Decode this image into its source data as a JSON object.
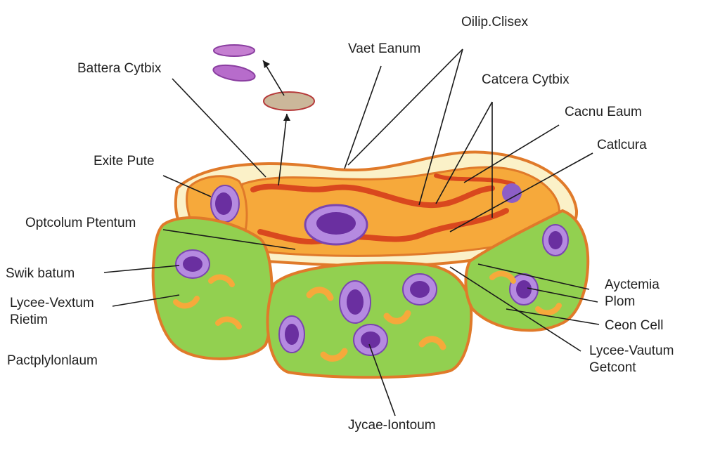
{
  "diagram": {
    "colors": {
      "outline": "#e07a2a",
      "orange_fill": "#f6a93b",
      "cream": "#fbf1c8",
      "green_fill": "#92d050",
      "nucleus": "#9b6fd1",
      "nucleus_dark": "#6a2fa0",
      "mito_red": "#d9481e",
      "leader": "#1a1a1a"
    },
    "labels": {
      "top_center_a": "Oilip.Clisex",
      "top_center_b": "Vaet Eanum",
      "top_left": "Battera Cytbix",
      "right_a": "Catcera Cytbix",
      "right_b": "Cacnu Eaum",
      "right_c": "Catlcura",
      "left_a": "Exite Pute",
      "left_b": "Optcolum Ptentum",
      "left_c": "Swik batum",
      "left_d": "Lycee-Vextum Rietim",
      "left_e": "Pactplylonlaum",
      "right_d": "Ayctemia Plom",
      "right_e": "Ceon Cell",
      "right_f": "Lycee-Vautum Getcont",
      "bottom": "Jycae-Iontoum"
    }
  }
}
